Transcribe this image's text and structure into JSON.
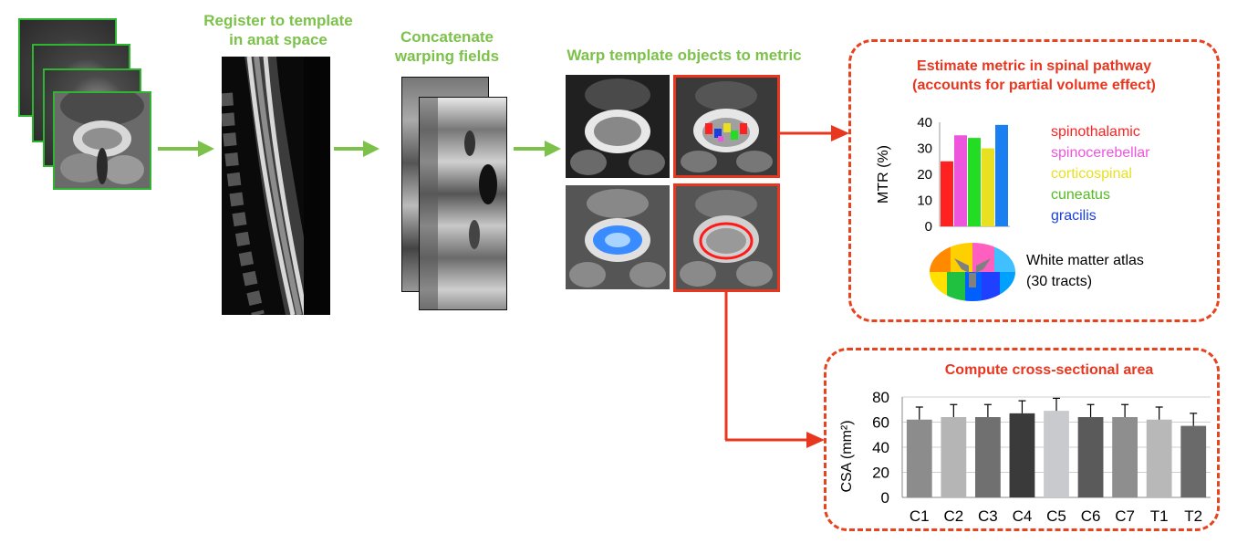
{
  "steps": {
    "register": {
      "line1": "Register to template",
      "line2": "in anat space"
    },
    "concatenate": {
      "line1": "Concatenate",
      "line2": "warping fields"
    },
    "warp": {
      "line1": "Warp template objects to metric"
    }
  },
  "metric_box": {
    "title_line1": "Estimate metric in spinal pathway",
    "title_line2": "(accounts for partial volume effect)",
    "atlas_label_line1": "White matter atlas",
    "atlas_label_line2": "(30 tracts)"
  },
  "csa_box": {
    "title": "Compute cross-sectional area"
  },
  "colors": {
    "green_arrow": "#7cc24a",
    "red_arrow": "#e8361f",
    "spinothalamic": "#ff2020",
    "spinocerebellar": "#ee55dd",
    "corticospinal": "#e8e020",
    "cuneatus": "#55bb22",
    "gracilis": "#1a3fe0"
  },
  "chart_data": [
    {
      "type": "bar",
      "ylabel": "MTR (%)",
      "ylim": [
        0,
        40
      ],
      "yticks": [
        "0",
        "10",
        "20",
        "30",
        "40"
      ],
      "series": [
        {
          "name": "spinothalamic",
          "value": 25,
          "color": "#ff2020"
        },
        {
          "name": "spinocerebellar",
          "value": 35,
          "color": "#ee55dd"
        },
        {
          "name": "corticospinal",
          "value": 34,
          "color": "#22dd22"
        },
        {
          "name": "cuneatus",
          "value": 30,
          "color": "#e8e020"
        },
        {
          "name": "gracilis",
          "value": 39,
          "color": "#1a7ff0"
        }
      ],
      "legend_colors": [
        "#ff2020",
        "#ee55dd",
        "#e8e020",
        "#55bb22",
        "#1a3fe0"
      ]
    },
    {
      "type": "bar",
      "ylabel": "CSA (mm²)",
      "ylim": [
        0,
        80
      ],
      "yticks": [
        "0",
        "20",
        "40",
        "60",
        "80"
      ],
      "categories": [
        "C1",
        "C2",
        "C3",
        "C4",
        "C5",
        "C6",
        "C7",
        "T1",
        "T2"
      ],
      "values": [
        62,
        64,
        64,
        67,
        69,
        64,
        64,
        62,
        57
      ],
      "errors": [
        10,
        10,
        10,
        10,
        10,
        10,
        10,
        10,
        10
      ],
      "bar_colors": [
        "#8c8c8c",
        "#b5b5b5",
        "#707070",
        "#3a3a3a",
        "#c8cace",
        "#5a5a5a",
        "#8e8e8e",
        "#b8b8b8",
        "#6a6a6a"
      ]
    }
  ]
}
